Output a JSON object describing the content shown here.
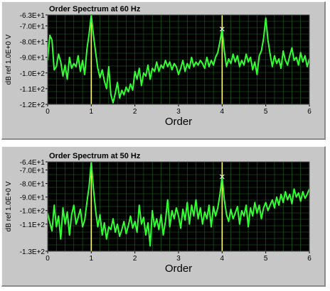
{
  "chart_data": [
    {
      "type": "line",
      "title": "Order Spectrum at 60 Hz",
      "xlabel": "Order",
      "ylabel": "dB ref 1.0E+0 V",
      "xlim": [
        0,
        6
      ],
      "ylim": [
        -120,
        -63
      ],
      "x_ticks": [
        "0",
        "1",
        "2",
        "3",
        "4",
        "5",
        "6"
      ],
      "y_ticks": [
        {
          "label": "-6.3E+1",
          "value": -63
        },
        {
          "label": "-7.0E+1",
          "value": -70
        },
        {
          "label": "-8.0E+1",
          "value": -80
        },
        {
          "label": "-9.0E+1",
          "value": -90
        },
        {
          "label": "-1.0E+2",
          "value": -100
        },
        {
          "label": "-1.1E+2",
          "value": -110
        },
        {
          "label": "-1.2E+2",
          "value": -120
        }
      ],
      "cursors_x": [
        1,
        4
      ],
      "marker": {
        "x": 4,
        "y": -72
      },
      "grid": true,
      "colors": {
        "plot_bg": "#000000",
        "grid": "#1f6b1f",
        "trace": "#33ff33",
        "cursor": "#ffff66",
        "panel": "#c7c7c7"
      },
      "series": [
        {
          "x": [
            0,
            0.05,
            0.1,
            0.15,
            0.2,
            0.25,
            0.3,
            0.35,
            0.4,
            0.45,
            0.5,
            0.55,
            0.6,
            0.65,
            0.7,
            0.75,
            0.8,
            0.85,
            0.9,
            0.95,
            1.0,
            1.05,
            1.1,
            1.15,
            1.2,
            1.25,
            1.3,
            1.35,
            1.4,
            1.45,
            1.5,
            1.55,
            1.6,
            1.65,
            1.7,
            1.75,
            1.8,
            1.85,
            1.9,
            1.95,
            2.0,
            2.05,
            2.1,
            2.15,
            2.2,
            2.25,
            2.3,
            2.35,
            2.4,
            2.45,
            2.5,
            2.55,
            2.6,
            2.65,
            2.7,
            2.75,
            2.8,
            2.85,
            2.9,
            2.95,
            3.0,
            3.05,
            3.1,
            3.15,
            3.2,
            3.25,
            3.3,
            3.35,
            3.4,
            3.45,
            3.5,
            3.55,
            3.6,
            3.65,
            3.7,
            3.75,
            3.8,
            3.85,
            3.9,
            3.95,
            4.0,
            4.05,
            4.1,
            4.15,
            4.2,
            4.25,
            4.3,
            4.35,
            4.4,
            4.45,
            4.5,
            4.55,
            4.6,
            4.65,
            4.7,
            4.75,
            4.8,
            4.85,
            4.9,
            4.95,
            5.0,
            5.05,
            5.1,
            5.15,
            5.2,
            5.25,
            5.3,
            5.35,
            5.4,
            5.45,
            5.5,
            5.55,
            5.6,
            5.65,
            5.7,
            5.75,
            5.8,
            5.85,
            5.9,
            5.95,
            6.0
          ],
          "y": [
            -92,
            -76,
            -79,
            -98,
            -96,
            -88,
            -93,
            -102,
            -95,
            -104,
            -90,
            -97,
            -94,
            -96,
            -89,
            -99,
            -92,
            -101,
            -85,
            -75,
            -63,
            -76,
            -87,
            -97,
            -103,
            -98,
            -105,
            -110,
            -96,
            -114,
            -119,
            -113,
            -106,
            -116,
            -111,
            -114,
            -109,
            -112,
            -107,
            -111,
            -99,
            -104,
            -97,
            -108,
            -100,
            -102,
            -95,
            -104,
            -97,
            -99,
            -93,
            -99,
            -95,
            -97,
            -92,
            -96,
            -93,
            -98,
            -94,
            -96,
            -101,
            -97,
            -92,
            -99,
            -94,
            -97,
            -90,
            -96,
            -93,
            -95,
            -92,
            -94,
            -97,
            -90,
            -96,
            -92,
            -95,
            -90,
            -87,
            -80,
            -72,
            -86,
            -96,
            -91,
            -94,
            -88,
            -93,
            -89,
            -96,
            -92,
            -95,
            -88,
            -93,
            -90,
            -98,
            -93,
            -101,
            -89,
            -86,
            -78,
            -65,
            -79,
            -88,
            -96,
            -89,
            -94,
            -91,
            -97,
            -86,
            -92,
            -95,
            -89,
            -84,
            -92,
            -90,
            -95,
            -87,
            -93,
            -89,
            -96,
            -91
          ]
        }
      ]
    },
    {
      "type": "line",
      "title": "Order Spectrum at 50 Hz",
      "xlabel": "Order",
      "ylabel": "dB ref 1.0E+0 V",
      "xlim": [
        0,
        6
      ],
      "ylim": [
        -130,
        -64
      ],
      "x_ticks": [
        "0",
        "1",
        "2",
        "3",
        "4",
        "5",
        "6"
      ],
      "y_ticks": [
        {
          "label": "-6.4E+1",
          "value": -64
        },
        {
          "label": "-7.0E+1",
          "value": -70
        },
        {
          "label": "-8.0E+1",
          "value": -80
        },
        {
          "label": "-9.0E+1",
          "value": -90
        },
        {
          "label": "-1.0E+2",
          "value": -100
        },
        {
          "label": "-1.1E+2",
          "value": -110
        },
        {
          "label": "-1.3E+2",
          "value": -130
        }
      ],
      "cursors_x": [
        1,
        4
      ],
      "marker": {
        "x": 4,
        "y": -75
      },
      "grid": true,
      "colors": {
        "plot_bg": "#000000",
        "grid": "#1f6b1f",
        "trace": "#33ff33",
        "cursor": "#ffff66",
        "panel": "#c7c7c7"
      },
      "series": [
        {
          "x": [
            0,
            0.05,
            0.1,
            0.15,
            0.2,
            0.25,
            0.3,
            0.35,
            0.4,
            0.45,
            0.5,
            0.55,
            0.6,
            0.65,
            0.7,
            0.75,
            0.8,
            0.85,
            0.9,
            0.95,
            1.0,
            1.05,
            1.1,
            1.15,
            1.2,
            1.25,
            1.3,
            1.35,
            1.4,
            1.45,
            1.5,
            1.55,
            1.6,
            1.65,
            1.7,
            1.75,
            1.8,
            1.85,
            1.9,
            1.95,
            2.0,
            2.05,
            2.1,
            2.15,
            2.2,
            2.25,
            2.3,
            2.35,
            2.4,
            2.45,
            2.5,
            2.55,
            2.6,
            2.65,
            2.7,
            2.75,
            2.8,
            2.85,
            2.9,
            2.95,
            3.0,
            3.05,
            3.1,
            3.15,
            3.2,
            3.25,
            3.3,
            3.35,
            3.4,
            3.45,
            3.5,
            3.55,
            3.6,
            3.65,
            3.7,
            3.75,
            3.8,
            3.85,
            3.9,
            3.95,
            4.0,
            4.05,
            4.1,
            4.15,
            4.2,
            4.25,
            4.3,
            4.35,
            4.4,
            4.45,
            4.5,
            4.55,
            4.6,
            4.65,
            4.7,
            4.75,
            4.8,
            4.85,
            4.9,
            4.95,
            5.0,
            5.05,
            5.1,
            5.15,
            5.2,
            5.25,
            5.3,
            5.35,
            5.4,
            5.45,
            5.5,
            5.55,
            5.6,
            5.65,
            5.7,
            5.75,
            5.8,
            5.85,
            5.9,
            5.95,
            6.0
          ],
          "y": [
            -102,
            -109,
            -115,
            -96,
            -112,
            -104,
            -121,
            -98,
            -110,
            -101,
            -118,
            -103,
            -96,
            -110,
            -105,
            -99,
            -112,
            -107,
            -94,
            -82,
            -64,
            -84,
            -100,
            -112,
            -103,
            -118,
            -109,
            -121,
            -112,
            -114,
            -106,
            -116,
            -110,
            -119,
            -114,
            -108,
            -117,
            -111,
            -104,
            -113,
            -108,
            -116,
            -96,
            -110,
            -105,
            -118,
            -109,
            -126,
            -100,
            -112,
            -106,
            -114,
            -103,
            -118,
            -108,
            -92,
            -112,
            -100,
            -106,
            -98,
            -104,
            -113,
            -99,
            -107,
            -94,
            -110,
            -96,
            -104,
            -92,
            -106,
            -98,
            -110,
            -101,
            -106,
            -96,
            -112,
            -97,
            -104,
            -98,
            -88,
            -75,
            -92,
            -103,
            -108,
            -99,
            -106,
            -102,
            -97,
            -110,
            -100,
            -104,
            -96,
            -112,
            -98,
            -104,
            -94,
            -102,
            -96,
            -106,
            -98,
            -94,
            -100,
            -96,
            -92,
            -98,
            -90,
            -96,
            -88,
            -94,
            -86,
            -92,
            -88,
            -95,
            -84,
            -90,
            -87,
            -93,
            -86,
            -91,
            -88,
            -84
          ]
        }
      ]
    }
  ]
}
